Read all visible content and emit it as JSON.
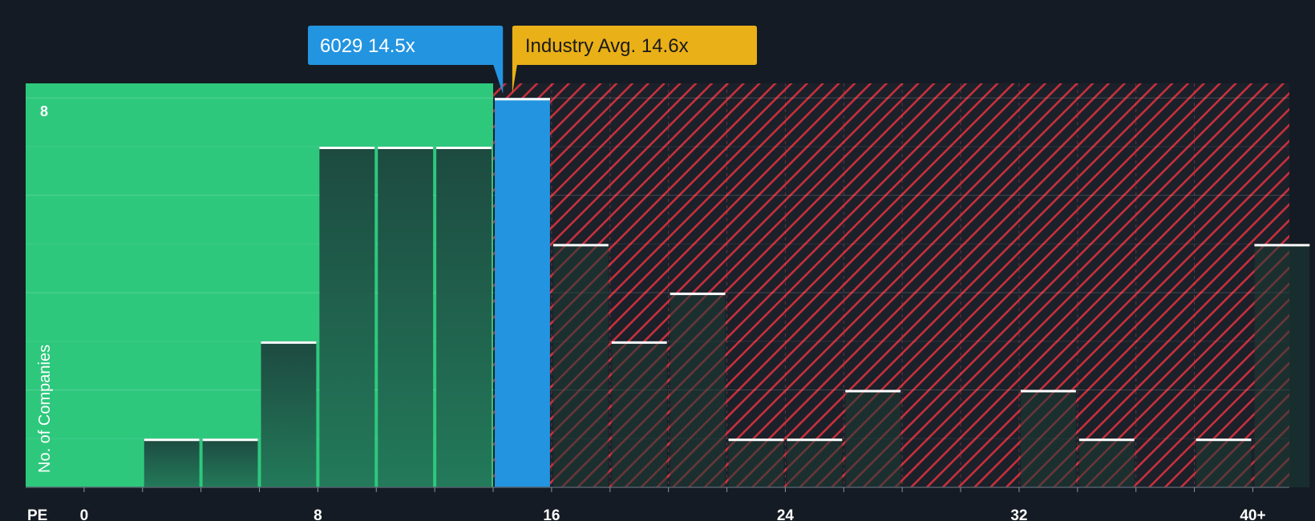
{
  "chart_data": {
    "type": "bar",
    "title": "",
    "xlabel": "PE",
    "ylabel": "No. of Companies",
    "xlim": [
      -2,
      41.25
    ],
    "ylim": [
      0,
      8.3
    ],
    "bin_width": 2,
    "x_ticks": [
      0,
      8,
      16,
      24,
      32,
      40
    ],
    "x_tick_labels": [
      "0",
      "8",
      "16",
      "24",
      "32",
      "40+"
    ],
    "y_ticks": [
      8
    ],
    "y_tick_labels": [
      "8"
    ],
    "grid": true,
    "bins": [
      {
        "start": 2,
        "value": 1
      },
      {
        "start": 4,
        "value": 1
      },
      {
        "start": 6,
        "value": 3
      },
      {
        "start": 8,
        "value": 7
      },
      {
        "start": 10,
        "value": 7
      },
      {
        "start": 12,
        "value": 7
      },
      {
        "start": 14,
        "value": 8
      },
      {
        "start": 16,
        "value": 5
      },
      {
        "start": 18,
        "value": 3
      },
      {
        "start": 20,
        "value": 4
      },
      {
        "start": 22,
        "value": 1
      },
      {
        "start": 24,
        "value": 1
      },
      {
        "start": 26,
        "value": 2
      },
      {
        "start": 32,
        "value": 2
      },
      {
        "start": 34,
        "value": 1
      },
      {
        "start": 38,
        "value": 1
      },
      {
        "start": 40,
        "value": 5
      }
    ],
    "company": {
      "label": "6029 14.5x",
      "value": 14.5,
      "bin_start": 14,
      "color": "#2394e0"
    },
    "industry_avg": {
      "label": "Industry Avg. 14.6x",
      "value": 14.6,
      "color": "#e9b017"
    },
    "colors": {
      "background": "#151b24",
      "undervalued_zone": "#2ec87d",
      "overvalued_zone": "#cf3340",
      "bar_dark": "#1c3c35",
      "bar_top": "#ffffff",
      "grid": "#ffffff",
      "axis_text": "#ffffff"
    }
  }
}
